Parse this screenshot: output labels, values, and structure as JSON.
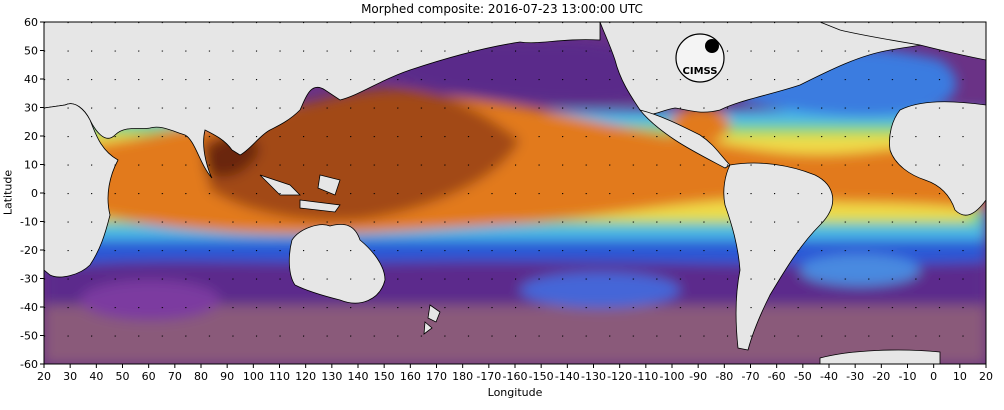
{
  "title": "Morphed composite: 2016-07-23 13:00:00 UTC",
  "xlabel": "Longitude",
  "ylabel": "Latitude",
  "x_ticks": [
    "20",
    "30",
    "40",
    "50",
    "60",
    "70",
    "80",
    "90",
    "100",
    "110",
    "120",
    "130",
    "140",
    "150",
    "160",
    "170",
    "180",
    "-170",
    "-160",
    "-150",
    "-140",
    "-130",
    "-120",
    "-110",
    "-100",
    "-90",
    "-80",
    "-70",
    "-60",
    "-50",
    "-40",
    "-30",
    "-20",
    "-10",
    "0",
    "10",
    "20"
  ],
  "y_ticks": [
    "60",
    "50",
    "40",
    "30",
    "20",
    "10",
    "0",
    "-10",
    "-20",
    "-30",
    "-40",
    "-50",
    "-60"
  ],
  "logo_text": "CIMSS",
  "colors": {
    "land": "#e6e6e6",
    "deep_purple": "#5a2a7a",
    "purple": "#7c3a96",
    "blue": "#2a5ad8",
    "cyan": "#4ec8ea",
    "green": "#7ad86a",
    "yellow": "#f2e04a",
    "orange": "#e8821e",
    "brown": "#a8501a",
    "dark_brown": "#6a2a10",
    "mauve": "#a07088",
    "border": "#000000"
  }
}
